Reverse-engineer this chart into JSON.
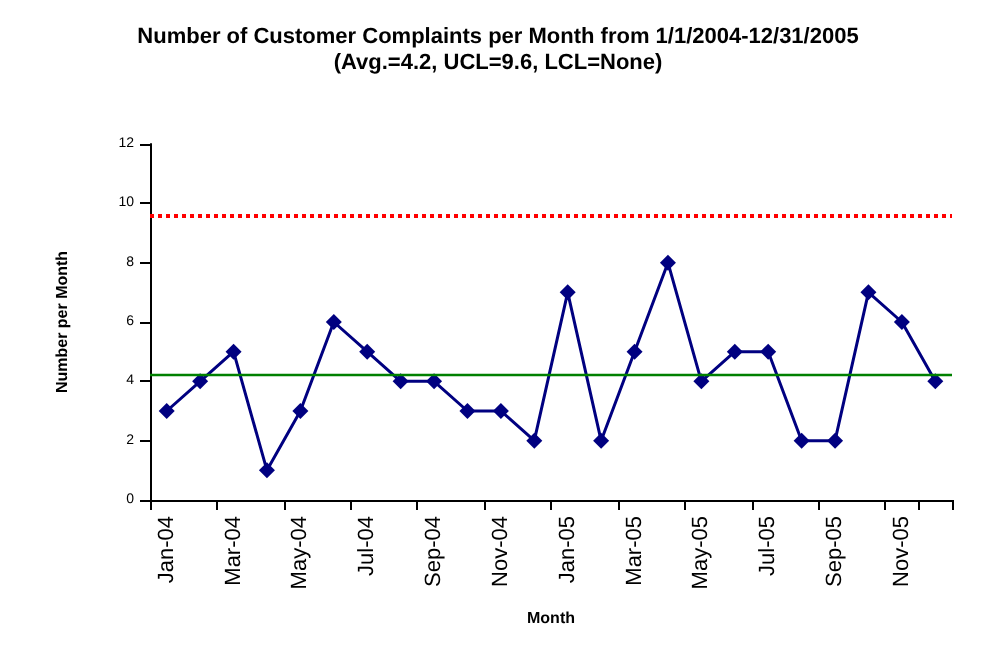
{
  "chart_data": {
    "type": "line",
    "title": "Number of Customer Complaints per Month from 1/1/2004-12/31/2005",
    "subtitle": "(Avg.=4.2, UCL=9.6, LCL=None)",
    "xlabel": "Month",
    "ylabel": "Number per Month",
    "categories": [
      "Jan-04",
      null,
      "Mar-04",
      null,
      "May-04",
      null,
      "Jul-04",
      null,
      "Sep-04",
      null,
      "Nov-04",
      null,
      "Jan-05",
      null,
      "Mar-05",
      null,
      "May-05",
      null,
      "Jul-05",
      null,
      "Sep-05",
      null,
      "Nov-05",
      null
    ],
    "series": [
      {
        "color": "#000080",
        "values": [
          3,
          4,
          5,
          1,
          3,
          6,
          5,
          4,
          4,
          3,
          3,
          2,
          7,
          2,
          5,
          8,
          4,
          5,
          5,
          2,
          2,
          7,
          6,
          4
        ]
      }
    ],
    "ylim": [
      0,
      12
    ],
    "yticks": [
      0,
      2,
      4,
      6,
      8,
      10,
      12
    ],
    "grid": false,
    "marker": "diamond",
    "line_style": "solid",
    "ref_lines": [
      {
        "axis": "y",
        "value": 4.2,
        "color": "#008000",
        "line_style": "solid"
      },
      {
        "axis": "y",
        "value": 9.6,
        "color": "#ff0000",
        "line_style": "dotted"
      }
    ]
  }
}
